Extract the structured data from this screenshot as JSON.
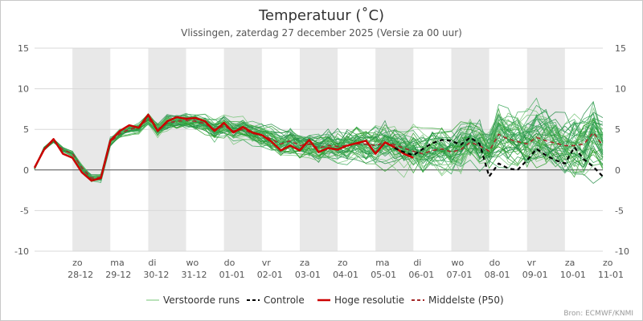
{
  "chart_data": {
    "type": "line",
    "title": "Temperatuur (˚C)",
    "subtitle": "Vlissingen, zaterdag 27 december 2025 (Versie za 00 uur)",
    "credit": "Bron: ECMWF/KNMI",
    "ylim": [
      -10,
      15
    ],
    "yticks": [
      -10,
      -5,
      0,
      5,
      10,
      15
    ],
    "x_range_days": [
      0,
      15
    ],
    "x_start": "2025-12-27 00:00",
    "grid": true,
    "shaded_days": [
      1,
      3,
      5,
      7,
      9,
      11,
      13,
      15
    ],
    "day_ticks": [
      {
        "day": 1,
        "weekday": "zo",
        "date": "28-12"
      },
      {
        "day": 2,
        "weekday": "ma",
        "date": "29-12"
      },
      {
        "day": 3,
        "weekday": "di",
        "date": "30-12"
      },
      {
        "day": 4,
        "weekday": "wo",
        "date": "31-12"
      },
      {
        "day": 5,
        "weekday": "do",
        "date": "01-01"
      },
      {
        "day": 6,
        "weekday": "vr",
        "date": "02-01"
      },
      {
        "day": 7,
        "weekday": "za",
        "date": "03-01"
      },
      {
        "day": 8,
        "weekday": "zo",
        "date": "04-01"
      },
      {
        "day": 9,
        "weekday": "ma",
        "date": "05-01"
      },
      {
        "day": 10,
        "weekday": "di",
        "date": "06-01"
      },
      {
        "day": 11,
        "weekday": "wo",
        "date": "07-01"
      },
      {
        "day": 12,
        "weekday": "do",
        "date": "08-01"
      },
      {
        "day": 13,
        "weekday": "vr",
        "date": "09-01"
      },
      {
        "day": 14,
        "weekday": "za",
        "date": "10-01"
      },
      {
        "day": 15,
        "weekday": "zo",
        "date": "11-01"
      }
    ],
    "legend": {
      "placement": "bottom",
      "items": [
        {
          "label": "Verstoorde runs",
          "color": "#74c476",
          "style": "solid-thin"
        },
        {
          "label": "Controle",
          "color": "#000000",
          "style": "dashed"
        },
        {
          "label": "Hoge resolutie",
          "color": "#cc0000",
          "style": "solid-thick"
        },
        {
          "label": "Middelste (P50)",
          "color": "#a52a2a",
          "style": "dashed"
        }
      ]
    },
    "series": [
      {
        "name": "Hoge resolutie",
        "color": "#cc0000",
        "x": [
          0,
          0.25,
          0.5,
          0.75,
          1,
          1.25,
          1.5,
          1.75,
          2,
          2.25,
          2.5,
          2.75,
          3,
          3.25,
          3.5,
          3.75,
          4,
          4.25,
          4.5,
          4.75,
          5,
          5.25,
          5.5,
          5.75,
          6,
          6.25,
          6.5,
          6.75,
          7,
          7.25,
          7.5,
          7.75,
          8,
          8.25,
          8.5,
          8.75,
          9,
          9.25,
          9.5,
          9.75,
          10
        ],
        "y": [
          0.3,
          2.5,
          3.8,
          2.0,
          1.5,
          -0.3,
          -1.3,
          -1.0,
          3.6,
          4.8,
          5.5,
          5.2,
          6.8,
          4.8,
          6.0,
          6.5,
          6.3,
          6.4,
          6.0,
          4.8,
          5.8,
          4.6,
          5.3,
          4.6,
          4.3,
          3.5,
          2.4,
          3.0,
          2.4,
          3.7,
          2.2,
          2.7,
          2.5,
          3.0,
          3.3,
          3.6,
          2.0,
          3.4,
          2.8,
          2.0,
          1.5
        ]
      },
      {
        "name": "Controle",
        "color": "#000000",
        "x": [
          9.5,
          9.75,
          10,
          10.25,
          10.5,
          10.75,
          11,
          11.25,
          11.5,
          11.75,
          12,
          12.25,
          12.5,
          12.75,
          13,
          13.25,
          13.5,
          13.75,
          14,
          14.25,
          14.5,
          14.75,
          15
        ],
        "y": [
          2.7,
          2.2,
          1.8,
          2.6,
          3.3,
          3.7,
          3.6,
          3.1,
          4.0,
          3.2,
          -0.8,
          0.8,
          0.2,
          0.0,
          1.2,
          2.6,
          1.8,
          1.2,
          0.8,
          2.8,
          1.3,
          0.4,
          -0.8
        ]
      },
      {
        "name": "Middelste (P50)",
        "color": "#a52a2a",
        "x": [
          0,
          0.25,
          0.5,
          0.75,
          1,
          1.25,
          1.5,
          1.75,
          2,
          2.25,
          2.5,
          2.75,
          3,
          3.25,
          3.5,
          3.75,
          4,
          4.25,
          4.5,
          4.75,
          5,
          5.25,
          5.5,
          5.75,
          6,
          6.25,
          6.5,
          6.75,
          7,
          7.25,
          7.5,
          7.75,
          8,
          8.25,
          8.5,
          8.75,
          9,
          9.25,
          9.5,
          9.75,
          10,
          10.25,
          10.5,
          10.75,
          11,
          11.25,
          11.5,
          11.75,
          12,
          12.25,
          12.5,
          12.75,
          13,
          13.25,
          13.5,
          13.75,
          14,
          14.25,
          14.5,
          14.75,
          15
        ],
        "y": [
          0.2,
          2.6,
          3.6,
          2.5,
          2.0,
          0.3,
          -1.0,
          -0.9,
          3.4,
          4.5,
          5.0,
          5.2,
          6.3,
          5.0,
          5.8,
          6.0,
          6.1,
          6.0,
          5.7,
          5.0,
          5.4,
          4.8,
          5.0,
          4.5,
          4.3,
          3.8,
          3.2,
          3.6,
          3.0,
          3.2,
          2.7,
          3.0,
          2.9,
          3.0,
          3.2,
          3.2,
          3.0,
          3.4,
          3.1,
          2.7,
          2.3,
          2.0,
          2.4,
          2.6,
          2.2,
          2.5,
          3.4,
          3.0,
          2.3,
          4.4,
          3.8,
          3.5,
          3.2,
          4.0,
          3.6,
          3.3,
          3.0,
          3.0,
          3.2,
          4.6,
          3.0
        ]
      }
    ]
  }
}
